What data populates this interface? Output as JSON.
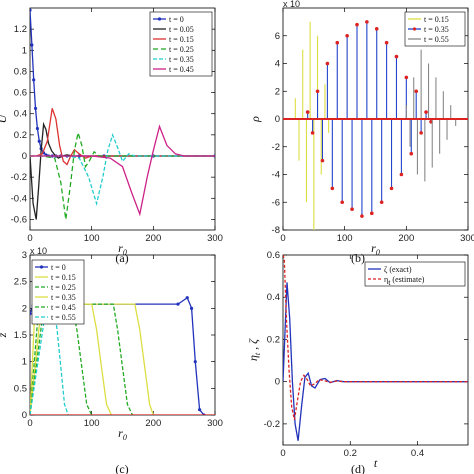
{
  "chart_data": [
    {
      "panel": "(a)",
      "type": "line",
      "xlabel": "r_0",
      "ylabel": "U",
      "xlim": [
        0,
        300
      ],
      "ylim": [
        -0.7,
        1.4
      ],
      "xticks": [
        "0",
        "100",
        "200",
        "300"
      ],
      "yticks": [
        "-0.6",
        "-0.4",
        "-0.2",
        "0",
        "0.2",
        "0.4",
        "0.6",
        "0.8",
        "1",
        "1.2"
      ],
      "legend_position": "top-right",
      "series": [
        {
          "name": "t = 0",
          "color": "#2233bb",
          "dash": "",
          "marker": true,
          "x": [
            0,
            3,
            6,
            9,
            12,
            15,
            18,
            22,
            26,
            30,
            36,
            42,
            50,
            60,
            80,
            120,
            200,
            300
          ],
          "y": [
            1.38,
            1.05,
            0.72,
            0.45,
            0.26,
            0.14,
            0.07,
            0.03,
            0.01,
            0.0,
            0,
            0,
            0,
            0,
            0,
            0,
            0,
            0
          ]
        },
        {
          "name": "t = 0.05",
          "color": "#222222",
          "dash": "",
          "marker": false,
          "x": [
            0,
            5,
            10,
            14,
            18,
            22,
            26,
            30,
            35,
            40,
            46,
            52,
            60,
            70,
            90,
            300
          ],
          "y": [
            0,
            -0.45,
            -0.6,
            -0.3,
            0.05,
            0.3,
            0.25,
            0.12,
            0.05,
            0.01,
            -0.02,
            0.0,
            0.01,
            0,
            0,
            0
          ]
        },
        {
          "name": "t = 0.15",
          "color": "#dd3333",
          "dash": "",
          "marker": false,
          "x": [
            0,
            10,
            20,
            28,
            36,
            42,
            48,
            54,
            60,
            66,
            72,
            80,
            90,
            100,
            300
          ],
          "y": [
            0,
            0,
            0.02,
            0.14,
            0.45,
            0.35,
            0.1,
            -0.05,
            -0.08,
            0.0,
            0.06,
            0.02,
            -0.02,
            0,
            0
          ]
        },
        {
          "name": "t = 0.25",
          "color": "#22aa22",
          "dash": "5,3",
          "marker": false,
          "x": [
            0,
            20,
            40,
            50,
            58,
            65,
            72,
            78,
            84,
            90,
            96,
            104,
            112,
            120,
            300
          ],
          "y": [
            0,
            0,
            -0.02,
            -0.25,
            -0.6,
            -0.3,
            0.05,
            0.22,
            0.1,
            -0.1,
            -0.05,
            0.04,
            0.0,
            0,
            0
          ]
        },
        {
          "name": "t = 0.35",
          "color": "#22cccc",
          "dash": "4,2",
          "marker": false,
          "x": [
            0,
            60,
            80,
            95,
            108,
            118,
            126,
            134,
            142,
            150,
            160,
            170,
            300
          ],
          "y": [
            0,
            0,
            -0.02,
            -0.2,
            -0.45,
            -0.2,
            0.05,
            0.2,
            0.08,
            -0.05,
            0.02,
            0,
            0
          ]
        },
        {
          "name": "t = 0.45",
          "color": "#cc2288",
          "dash": "",
          "marker": false,
          "x": [
            0,
            100,
            130,
            150,
            165,
            178,
            190,
            200,
            210,
            222,
            236,
            250,
            300
          ],
          "y": [
            0,
            0,
            -0.02,
            -0.1,
            -0.35,
            -0.55,
            -0.2,
            0.05,
            0.28,
            0.1,
            0.02,
            0,
            0
          ]
        }
      ]
    },
    {
      "panel": "(b)",
      "type": "line",
      "xlabel": "r_0",
      "ylabel": "ρ",
      "multiplier": "x 10",
      "xlim": [
        0,
        300
      ],
      "ylim": [
        -8,
        8
      ],
      "xticks": [
        "0",
        "100",
        "200",
        "300"
      ],
      "yticks": [
        "-8",
        "-6",
        "-4",
        "-2",
        "0",
        "2",
        "4",
        "6"
      ],
      "legend_position": "top-right",
      "series": [
        {
          "name": "t = 0.15",
          "color": "#dddd44",
          "marker": false,
          "x": [
            20,
            26,
            32,
            38,
            44,
            50,
            56,
            62,
            68,
            74
          ],
          "y": [
            1.5,
            -3,
            5,
            -6,
            7,
            -8.5,
            6,
            -4,
            2.5,
            -1
          ]
        },
        {
          "name": "t = 0.35",
          "color": "#2244cc",
          "marker": true,
          "x": [
            40,
            48,
            56,
            64,
            72,
            80,
            88,
            96,
            104,
            112,
            120,
            128,
            136,
            144,
            152,
            160,
            168,
            176,
            184,
            192,
            200,
            208,
            216,
            224,
            232,
            240
          ],
          "y": [
            0.5,
            -1,
            2,
            -3,
            4,
            -5,
            5.5,
            -6,
            6,
            -6.5,
            6.8,
            -7,
            7,
            -6.8,
            6.5,
            -6,
            5.5,
            -5,
            4.5,
            -4,
            3,
            -2.5,
            2,
            -1,
            0.5,
            -0.2
          ]
        },
        {
          "name": "t = 0.55",
          "color": "#888888",
          "marker": false,
          "x": [
            200,
            206,
            212,
            218,
            224,
            230,
            236,
            242,
            248,
            254,
            260,
            266,
            272,
            280
          ],
          "y": [
            1,
            -2,
            3,
            -4,
            5,
            -4.5,
            4,
            -3.5,
            3,
            -2.5,
            2,
            -1.5,
            1,
            -0.5
          ]
        }
      ]
    },
    {
      "panel": "(c)",
      "type": "line",
      "xlabel": "r_0",
      "ylabel": "z",
      "multiplier": "x 10",
      "xlim": [
        0,
        300
      ],
      "ylim": [
        0,
        3
      ],
      "xticks": [
        "0",
        "100",
        "200",
        "300"
      ],
      "yticks": [
        "0",
        "0.5",
        "1",
        "1.5",
        "2",
        "2.5",
        "3"
      ],
      "legend_position": "top-left",
      "series": [
        {
          "name": "t = 0",
          "color": "#2233bb",
          "dash": "",
          "marker": true,
          "x": [
            0,
            5,
            10,
            240,
            255,
            262,
            268,
            275,
            282
          ],
          "y": [
            1.9,
            2.05,
            2.08,
            2.08,
            2.2,
            2.0,
            1.0,
            0.1,
            0
          ]
        },
        {
          "name": "t = 0.15",
          "color": "#dddd44",
          "dash": "",
          "marker": false,
          "x": [
            0,
            8,
            14,
            170,
            178,
            186,
            194,
            200
          ],
          "y": [
            0,
            2.0,
            2.08,
            2.08,
            1.6,
            0.9,
            0.2,
            0
          ]
        },
        {
          "name": "t = 0.25",
          "color": "#22aa22",
          "dash": "4,2",
          "marker": false,
          "x": [
            0,
            14,
            22,
            135,
            142,
            150,
            158,
            166
          ],
          "y": [
            0,
            2.0,
            2.08,
            2.08,
            1.6,
            0.9,
            0.2,
            0
          ]
        },
        {
          "name": "t = 0.35",
          "color": "#dddd44",
          "dash": "",
          "marker": false,
          "x": [
            0,
            18,
            26,
            100,
            108,
            116,
            124,
            132
          ],
          "y": [
            0,
            2.0,
            2.08,
            2.08,
            1.6,
            0.9,
            0.2,
            0
          ]
        },
        {
          "name": "t = 0.45",
          "color": "#22aa22",
          "dash": "4,2",
          "marker": false,
          "x": [
            0,
            22,
            30,
            68,
            76,
            84,
            92,
            100
          ],
          "y": [
            0,
            2.0,
            2.08,
            2.08,
            1.6,
            0.9,
            0.2,
            0
          ]
        },
        {
          "name": "t = 0.55",
          "color": "#22cccc",
          "dash": "4,2",
          "marker": false,
          "x": [
            0,
            26,
            34,
            38,
            44,
            50,
            56,
            62
          ],
          "y": [
            0,
            2.0,
            2.08,
            2.08,
            1.6,
            0.9,
            0.2,
            0
          ]
        },
        {
          "name": "",
          "color": "#dd2222",
          "dash": "",
          "marker": false,
          "x": [
            0,
            300
          ],
          "y": [
            0,
            0
          ]
        }
      ]
    },
    {
      "panel": "(d)",
      "type": "line",
      "xlabel": "t",
      "ylabel": "η_t , ζ",
      "xlim": [
        0,
        0.55
      ],
      "ylim": [
        -0.3,
        0.6
      ],
      "xticks": [
        "0",
        "0.2",
        "0.4"
      ],
      "yticks": [
        "-0.2",
        "0",
        "0.2",
        "0.4",
        "0.6"
      ],
      "legend_position": "top-right",
      "series": [
        {
          "name": "ζ (exact)",
          "color": "#2233bb",
          "dash": "",
          "marker": false,
          "x": [
            0,
            0.005,
            0.012,
            0.02,
            0.028,
            0.036,
            0.045,
            0.055,
            0.065,
            0.075,
            0.085,
            0.095,
            0.11,
            0.125,
            0.14,
            0.16,
            0.18,
            0.2,
            0.25,
            0.3,
            0.55
          ],
          "y": [
            0,
            0.2,
            0.47,
            0.3,
            0.0,
            -0.2,
            -0.28,
            -0.12,
            0.02,
            0.04,
            -0.02,
            -0.03,
            0.01,
            0.015,
            -0.005,
            0.005,
            0,
            0,
            0,
            0,
            0
          ]
        },
        {
          "name": "η_t (estimate)",
          "color": "#dd2222",
          "dash": "3,2",
          "marker": false,
          "x": [
            0,
            0.004,
            0.01,
            0.018,
            0.026,
            0.034,
            0.042,
            0.052,
            0.062,
            0.072,
            0.082,
            0.094,
            0.108,
            0.122,
            0.14,
            0.16,
            0.18,
            0.2,
            0.3,
            0.55
          ],
          "y": [
            0.6,
            0.58,
            0.3,
            0.05,
            -0.12,
            -0.18,
            -0.1,
            0.0,
            0.03,
            0.01,
            -0.02,
            -0.01,
            0.01,
            0.005,
            -0.003,
            0.003,
            0,
            0,
            0,
            0
          ]
        }
      ]
    }
  ],
  "captions": [
    "(a)",
    "(b)",
    "(c)",
    "(d)"
  ],
  "axis_labels": {
    "a_x": "r_0",
    "a_y": "U",
    "b_x": "r_0",
    "b_y": "ρ",
    "b_mult": "x 10",
    "c_x": "r_0",
    "c_y": "z",
    "c_mult": "x 10",
    "d_x": "t",
    "d_y": "η_t , ζ"
  }
}
